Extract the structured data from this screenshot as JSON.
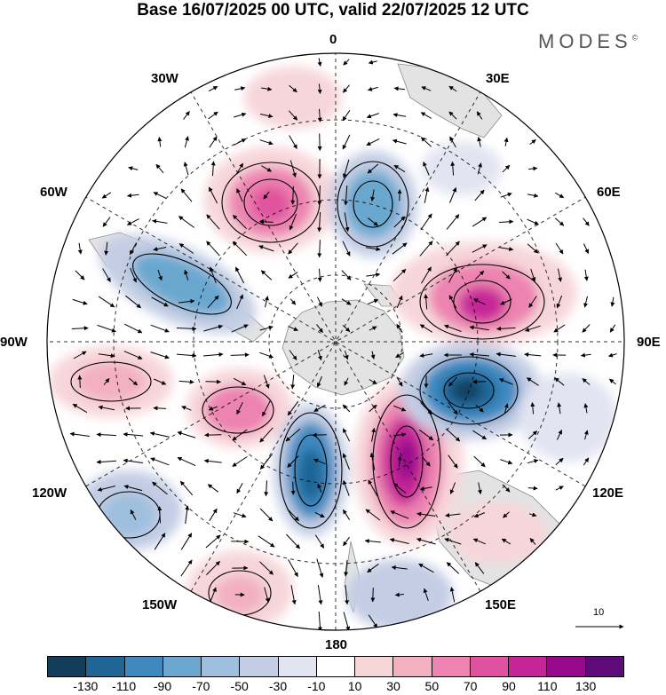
{
  "title": "Base 16/07/2025 00 UTC, valid 22/07/2025 12 UTC",
  "brand": {
    "name": "MODES",
    "mark": "©"
  },
  "longitude_labels": {
    "lon_0": "0",
    "lon_30e": "30E",
    "lon_60e": "60E",
    "lon_90e": "90E",
    "lon_120e": "120E",
    "lon_150e": "150E",
    "lon_180": "180",
    "lon_150w": "150W",
    "lon_120w": "120W",
    "lon_90w": "90W",
    "lon_60w": "60W",
    "lon_30w": "30W"
  },
  "colorbar": {
    "colors": [
      "#143d5c",
      "#1f6596",
      "#3e89c0",
      "#6ba7cf",
      "#9fbfde",
      "#c3cde4",
      "#e2e4f1",
      "#ffffff",
      "#f7d6da",
      "#f2b0c0",
      "#ec83b0",
      "#e0529f",
      "#c62597",
      "#98088b",
      "#5f0a79"
    ],
    "tick_labels": [
      "-130",
      "-110",
      "-90",
      "-70",
      "-50",
      "-30",
      "-10",
      "10",
      "30",
      "50",
      "70",
      "90",
      "110",
      "130"
    ]
  },
  "reference_vector": {
    "label": "10"
  }
}
